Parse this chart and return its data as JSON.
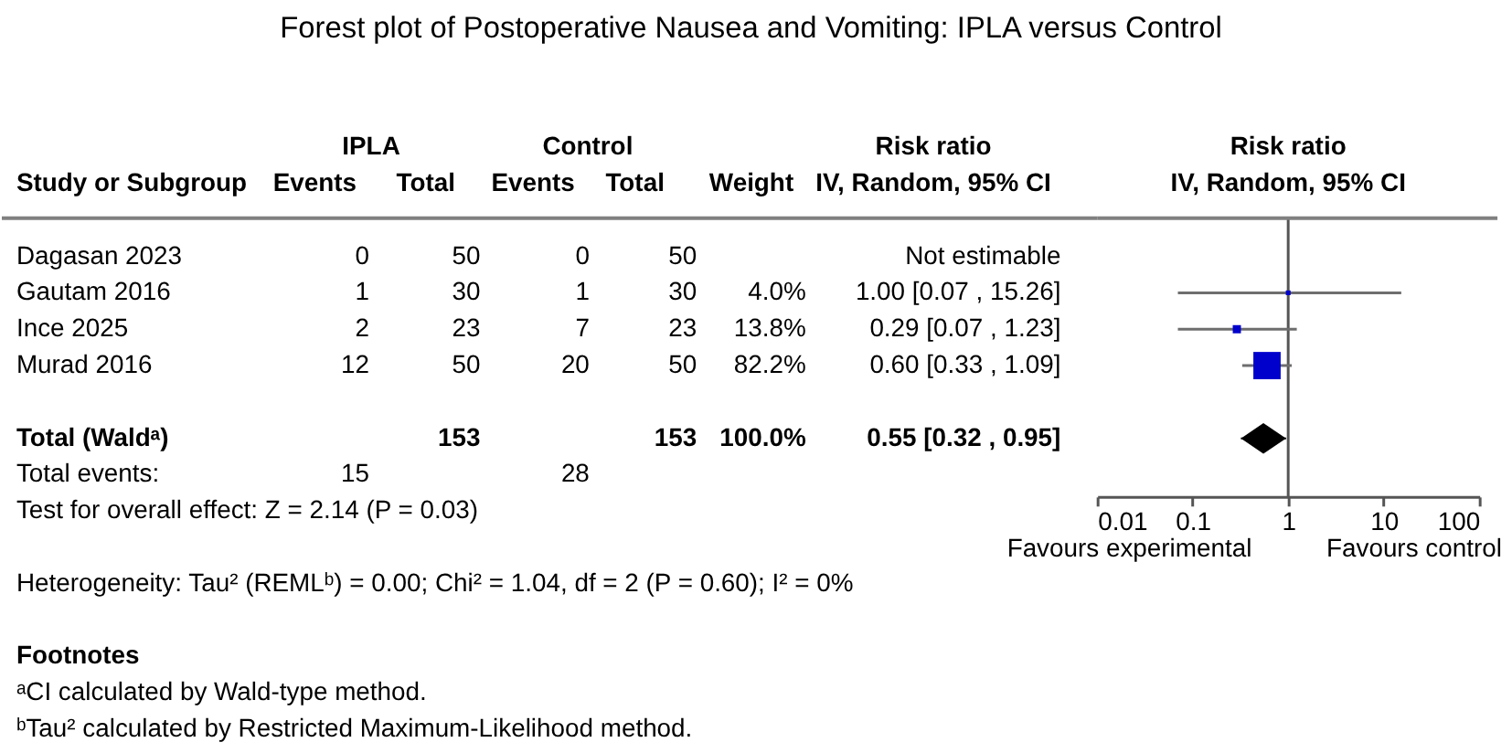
{
  "chart_data": [
    {
      "type": "heatmap",
      "title": "Forest plot of Postoperative Nausea and Vomiting: IPLA versus Control",
      "ylabel": "Study or Subgroup",
      "categories": [
        "Events",
        "Total",
        "Events",
        "Total",
        "Weight",
        "IV, Random, 95% CI"
      ],
      "y_categories": [
        "Dagasan 2023",
        "Gautam 2016",
        "Ince 2025",
        "Murad 2016"
      ],
      "cells": [
        [
          null,
          null,
          null,
          null,
          null,
          null
        ],
        [
          null,
          null,
          null,
          null,
          null,
          null
        ],
        [
          null,
          null,
          null,
          null,
          null,
          null
        ],
        [
          null,
          null,
          null,
          null,
          null,
          null
        ]
      ],
      "cell_labels": [
        [
          "0",
          "50",
          "0",
          "50",
          null,
          "Not estimable"
        ],
        [
          "1",
          "30",
          "1",
          "30",
          "4.0%",
          "1.00 [0.07 , 15.26]"
        ],
        [
          "2",
          "23",
          "7",
          "23",
          "13.8%",
          "0.29 [0.07 , 1.23]"
        ],
        [
          "12",
          "50",
          "20",
          "50",
          "82.2%",
          "0.60 [0.33 , 1.09]"
        ]
      ],
      "annotations": [
        "IPLA",
        "Control",
        "Risk ratio"
      ]
    },
    {
      "type": "heatmap",
      "categories": [
        null,
        null,
        null,
        null,
        null,
        null
      ],
      "y_categories": [
        "Total (Waldᵃ)",
        "Total events:"
      ],
      "cells": [
        [
          null,
          null,
          null,
          null,
          null,
          null
        ],
        [
          null,
          null,
          null,
          null,
          null,
          null
        ]
      ],
      "cell_labels": [
        [
          null,
          "153",
          null,
          "153",
          "100.0%",
          "0.55 [0.32 , 0.95]"
        ],
        [
          "15",
          null,
          "28",
          null,
          null,
          null
        ]
      ],
      "annotations": [
        "Test for overall effect: Z = 2.14 (P = 0.03)",
        "Heterogeneity: Tau² (REMLᵇ) = 0.00; Chi² = 1.04, df = 2 (P = 0.60); I² = 0%",
        "Footnotes",
        "ᵃCI calculated by Wald-type method.",
        "ᵇTau² calculated by Restricted Maximum-Likelihood method."
      ]
    },
    {
      "type": "scatter",
      "title": "Risk ratio",
      "subtitle": "IV, Random, 95% CI",
      "orientation": "horizontal",
      "categories": [
        null,
        null,
        null,
        null,
        null,
        null,
        null
      ],
      "series": [
        {
          "type": "bubble",
          "marker": "square",
          "color": "#0000cc",
          "values": [
            null,
            1.0,
            0.29,
            0.6,
            null,
            null,
            null
          ],
          "errors": [
            null,
            [
              0.07,
              15.26
            ],
            [
              0.07,
              1.23
            ],
            [
              0.33,
              1.09
            ],
            null,
            null,
            null
          ],
          "sizes": [
            null,
            0.03,
            0.09,
            1,
            null,
            null,
            null
          ]
        },
        {
          "type": "scatter",
          "marker": "diamond",
          "color": "#000000",
          "values": [
            null,
            null,
            null,
            null,
            null,
            0.55,
            null
          ],
          "errors": [
            null,
            null,
            null,
            null,
            null,
            [
              0.32,
              0.95
            ],
            null
          ]
        }
      ],
      "log": "x",
      "xlim": [
        0.01,
        100
      ],
      "xticks": [
        0.01,
        0.1,
        1,
        10,
        100
      ],
      "ref_lines": [
        {
          "axis": "x",
          "value": 1,
          "color": "#555555"
        }
      ],
      "tick_labels": "x",
      "grid": false,
      "annotations": [
        "Favours experimental",
        "Favours control"
      ]
    }
  ]
}
